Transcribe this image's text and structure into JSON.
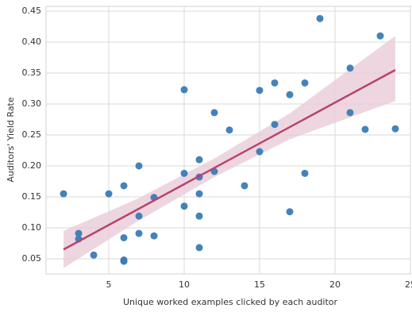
{
  "chart_data": {
    "type": "scatter",
    "xlabel": "Unique worked examples clicked by each auditor",
    "ylabel": "Auditors' Yield Rate",
    "x": [
      2,
      3,
      3,
      4,
      5,
      6,
      6,
      6,
      6,
      7,
      7,
      7,
      8,
      8,
      10,
      10,
      10,
      11,
      11,
      11,
      11,
      11,
      12,
      12,
      13,
      14,
      15,
      15,
      16,
      16,
      17,
      17,
      18,
      18,
      19,
      21,
      21,
      22,
      23,
      24
    ],
    "values": [
      0.155,
      0.091,
      0.082,
      0.056,
      0.155,
      0.168,
      0.084,
      0.048,
      0.046,
      0.2,
      0.119,
      0.091,
      0.149,
      0.087,
      0.323,
      0.188,
      0.135,
      0.21,
      0.182,
      0.155,
      0.119,
      0.068,
      0.286,
      0.191,
      0.258,
      0.168,
      0.322,
      0.223,
      0.334,
      0.267,
      0.315,
      0.126,
      0.334,
      0.188,
      0.438,
      0.358,
      0.286,
      0.259,
      0.41,
      0.26
    ],
    "color": "#3b7bb5",
    "fit": {
      "x": [
        2,
        24
      ],
      "values": [
        0.065,
        0.355
      ],
      "color": "#b5446e"
    },
    "band": {
      "x": [
        2,
        7,
        12,
        17,
        24
      ],
      "lower": [
        0.035,
        0.112,
        0.182,
        0.243,
        0.305
      ],
      "upper": [
        0.095,
        0.148,
        0.212,
        0.285,
        0.41
      ],
      "color": "#e8c8d6"
    },
    "xlim": [
      0.84,
      25.0
    ],
    "ylim": [
      0.0256,
      0.4577
    ],
    "xticks": [
      5,
      10,
      15,
      20,
      25
    ],
    "yticks": [
      0.05,
      {
        "value": 0.1,
        "label": "0.10"
      },
      0.15,
      {
        "value": 0.2,
        "label": "0.20"
      },
      0.25,
      {
        "value": 0.3,
        "label": "0.30"
      },
      0.35,
      {
        "value": 0.4,
        "label": "0.40"
      },
      0.45
    ],
    "grid": true
  }
}
